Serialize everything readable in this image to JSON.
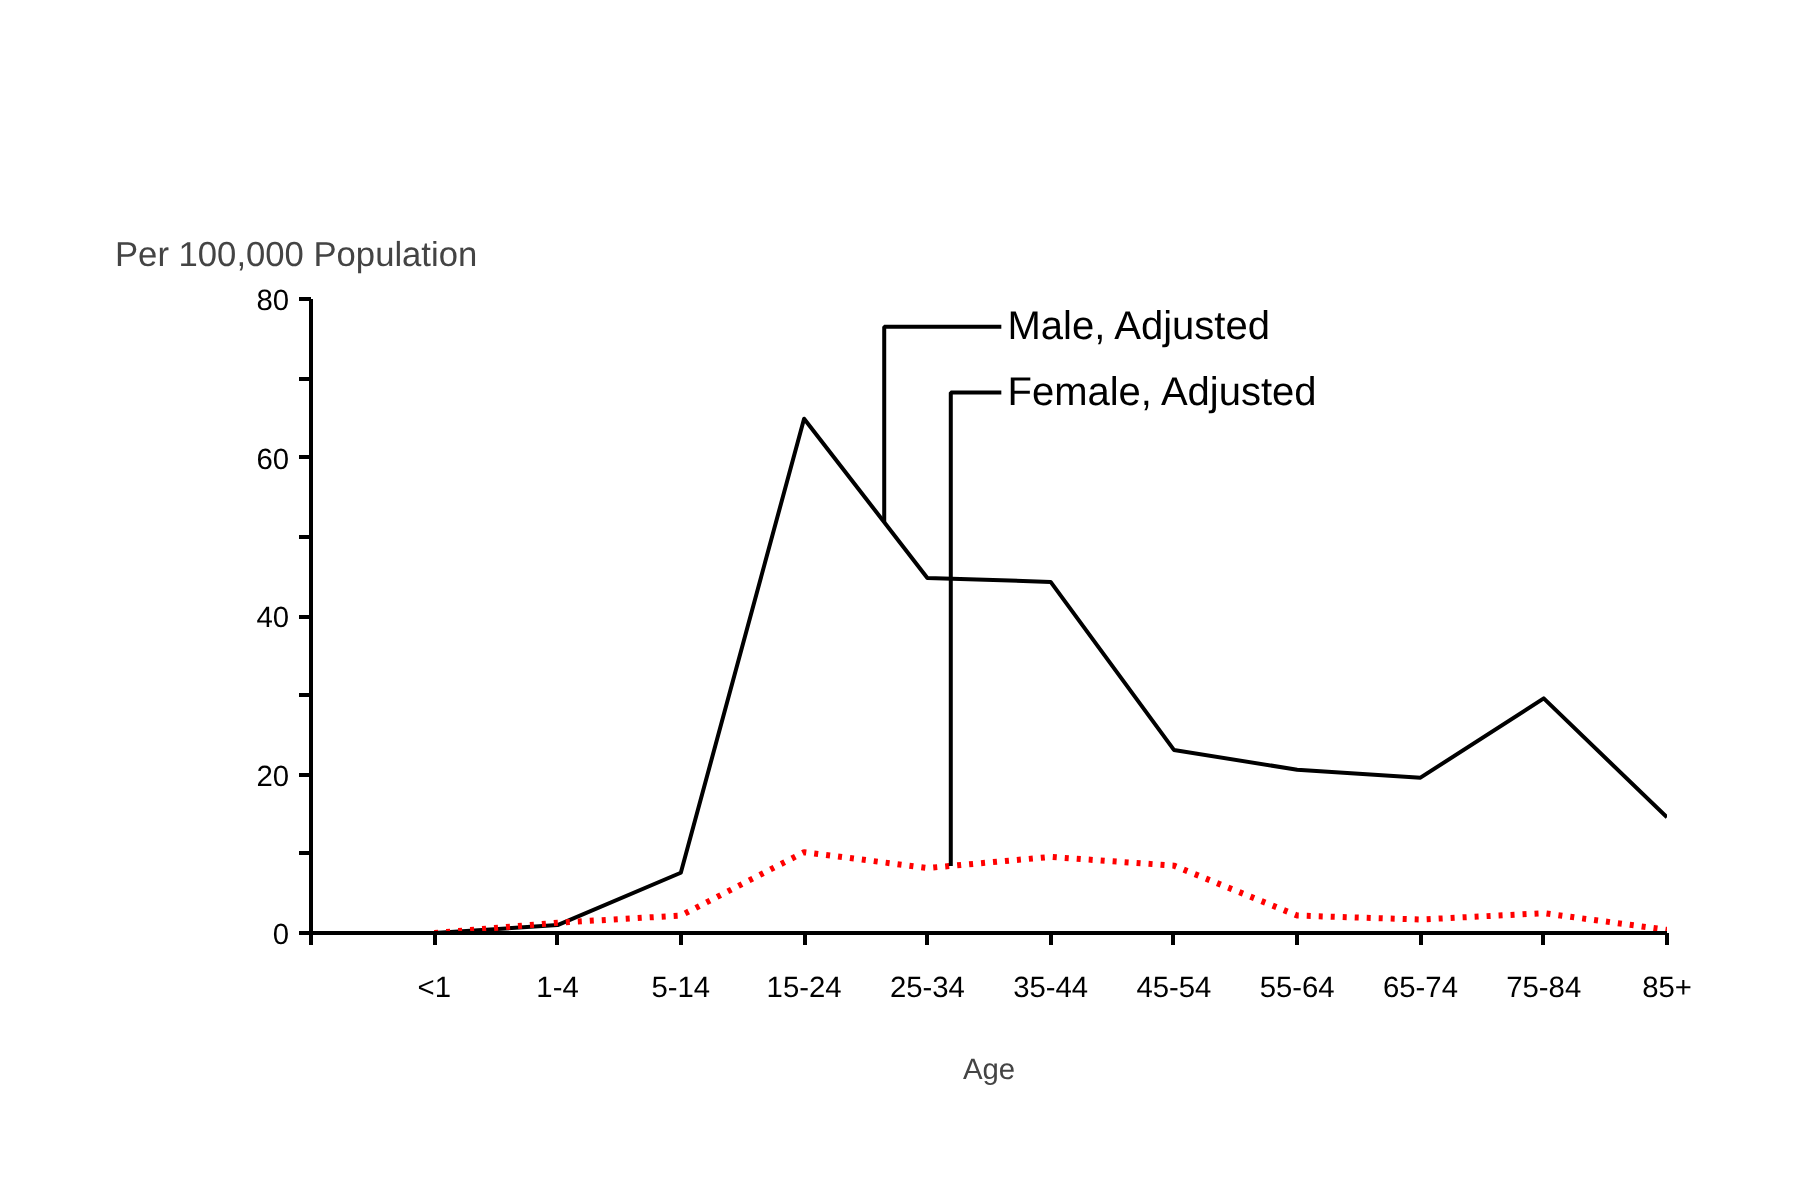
{
  "chart_data": {
    "type": "line",
    "ylabel": "Per 100,000 Population",
    "xlabel": "Age",
    "categories": [
      "<1",
      "1-4",
      "5-14",
      "15-24",
      "25-34",
      "35-44",
      "45-54",
      "55-64",
      "65-74",
      "75-84",
      "85+"
    ],
    "series": [
      {
        "name": "Male, Adjusted",
        "color": "#000000",
        "line_style": "solid",
        "values": [
          0,
          1,
          7.6,
          64.9,
          44.8,
          44.3,
          23.1,
          20.6,
          19.6,
          29.6,
          14.6
        ]
      },
      {
        "name": "Female, Adjusted",
        "color": "#ff0000",
        "line_style": "dotted",
        "values": [
          0,
          1.3,
          2.2,
          10.2,
          8.2,
          9.6,
          8.5,
          2.2,
          1.7,
          2.5,
          0.4
        ]
      }
    ],
    "ylim": [
      0,
      80
    ],
    "yticks": [
      0,
      {
        "value": 10,
        "label": null
      },
      20,
      {
        "value": 30,
        "label": null
      },
      40,
      {
        "value": 50,
        "label": null
      },
      60,
      {
        "value": 70,
        "label": null
      },
      80
    ],
    "grid": false
  }
}
